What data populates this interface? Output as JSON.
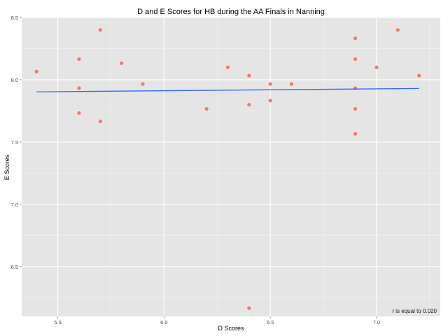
{
  "chart_data": {
    "type": "scatter",
    "title": "D and E Scores for HB during the AA Finals in Nanning",
    "xlabel": "D Scores",
    "ylabel": "E Scores",
    "xlim": [
      5.33,
      7.3
    ],
    "ylim": [
      6.1,
      8.5
    ],
    "x_ticks": [
      {
        "value": 5.5,
        "label": "5.5"
      },
      {
        "value": 6.0,
        "label": "6.0"
      },
      {
        "value": 6.5,
        "label": "6.5"
      },
      {
        "value": 7.0,
        "label": "7.0"
      }
    ],
    "y_ticks": [
      {
        "value": 6.5,
        "label": "6.5"
      },
      {
        "value": 7.0,
        "label": "7.0"
      },
      {
        "value": 7.5,
        "label": "7.5"
      },
      {
        "value": 8.0,
        "label": "8.0"
      },
      {
        "value": 8.5,
        "label": "8.5"
      }
    ],
    "points": [
      {
        "x": 5.4,
        "y": 8.066
      },
      {
        "x": 5.6,
        "y": 8.166
      },
      {
        "x": 5.6,
        "y": 7.933
      },
      {
        "x": 5.6,
        "y": 7.733
      },
      {
        "x": 5.7,
        "y": 8.4
      },
      {
        "x": 5.7,
        "y": 7.666
      },
      {
        "x": 5.8,
        "y": 8.133
      },
      {
        "x": 5.9,
        "y": 7.966
      },
      {
        "x": 6.2,
        "y": 7.766
      },
      {
        "x": 6.3,
        "y": 8.1
      },
      {
        "x": 6.4,
        "y": 8.033
      },
      {
        "x": 6.4,
        "y": 7.8
      },
      {
        "x": 6.4,
        "y": 6.166
      },
      {
        "x": 6.5,
        "y": 7.966
      },
      {
        "x": 6.5,
        "y": 7.833
      },
      {
        "x": 6.6,
        "y": 7.966
      },
      {
        "x": 6.9,
        "y": 8.333
      },
      {
        "x": 6.9,
        "y": 8.166
      },
      {
        "x": 6.9,
        "y": 7.933
      },
      {
        "x": 6.9,
        "y": 7.766
      },
      {
        "x": 6.9,
        "y": 7.566
      },
      {
        "x": 7.0,
        "y": 8.1
      },
      {
        "x": 7.1,
        "y": 8.4
      },
      {
        "x": 7.2,
        "y": 8.033
      }
    ],
    "trend_line": {
      "x": [
        5.4,
        7.2
      ],
      "y": [
        7.903,
        7.93
      ]
    },
    "annotation": "r is equal to 0.020",
    "grid": true,
    "colors": {
      "panel_background": "#e5e5e5",
      "grid_major": "#ffffff",
      "grid_minor": "#f2f2f2",
      "points": "#f8766d",
      "trend_line": "#3366ff"
    }
  }
}
